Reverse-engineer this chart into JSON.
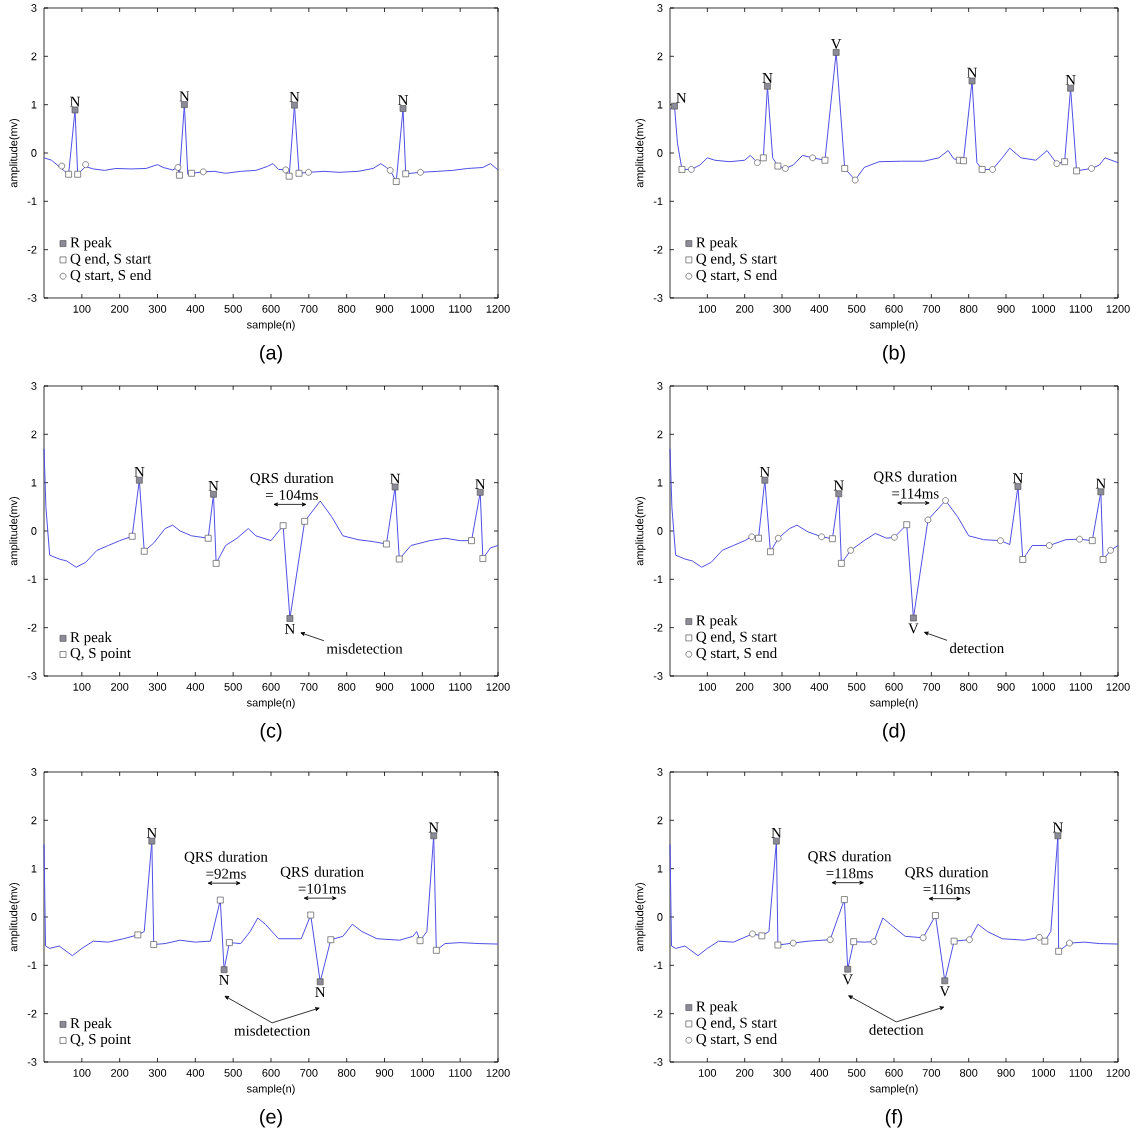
{
  "chart_data": [
    {
      "type": "line",
      "title": "(a)",
      "xlabel": "sample(n)",
      "ylabel": "amplitude(mv)",
      "xlim": [
        0,
        1200
      ],
      "xticks": [
        100,
        200,
        300,
        400,
        500,
        600,
        700,
        800,
        900,
        1000,
        1100,
        1200
      ],
      "ylim": [
        -3,
        3
      ],
      "yticks": [
        -3,
        -2,
        -1,
        0,
        1,
        2,
        3
      ],
      "legend": "bottom left",
      "series": [
        {
          "color": "#4f4fe6",
          "x": [
            0,
            20,
            40,
            55,
            65,
            82,
            89,
            110,
            130,
            160,
            190,
            230,
            270,
            300,
            315,
            340,
            354,
            358,
            371,
            380,
            390,
            421,
            450,
            480,
            520,
            560,
            590,
            605,
            620,
            639,
            648,
            662,
            674,
            699,
            740,
            780,
            830,
            870,
            890,
            905,
            915,
            931,
            949,
            956,
            995,
            1040,
            1080,
            1120,
            1160,
            1180,
            1200
          ],
          "values": [
            -0.1,
            -0.15,
            -0.28,
            -0.38,
            -0.44,
            0.89,
            -0.44,
            -0.28,
            -0.33,
            -0.36,
            -0.32,
            -0.33,
            -0.32,
            -0.24,
            -0.3,
            -0.35,
            -0.3,
            -0.46,
            1.0,
            -0.44,
            -0.42,
            -0.39,
            -0.38,
            -0.42,
            -0.38,
            -0.36,
            -0.28,
            -0.22,
            -0.34,
            -0.35,
            -0.48,
            0.99,
            -0.42,
            -0.4,
            -0.38,
            -0.4,
            -0.38,
            -0.32,
            -0.22,
            -0.3,
            -0.36,
            -0.59,
            0.92,
            -0.43,
            -0.4,
            -0.38,
            -0.36,
            -0.32,
            -0.3,
            -0.22,
            -0.35
          ]
        },
        {
          "type": "scatter",
          "name": "R peak",
          "marker": "square",
          "color": "#8c8c98",
          "x": [
            82,
            371,
            662,
            949
          ],
          "values": [
            0.89,
            1.0,
            0.99,
            0.92
          ],
          "value_labels": [
            "N",
            "N",
            "N",
            "N"
          ]
        },
        {
          "type": "scatter",
          "name": "Q end, S start",
          "marker": "square",
          "color": "#ffffff",
          "x": [
            65,
            89,
            358,
            390,
            648,
            674,
            931,
            956
          ],
          "values": [
            -0.44,
            -0.44,
            -0.46,
            -0.42,
            -0.48,
            -0.42,
            -0.59,
            -0.43
          ]
        },
        {
          "type": "scatter",
          "name": "Q start, S end",
          "marker": "circle",
          "color": "#ffffff",
          "x": [
            47,
            110,
            354,
            421,
            639,
            699,
            915,
            995
          ],
          "values": [
            -0.27,
            -0.24,
            -0.3,
            -0.39,
            -0.35,
            -0.4,
            -0.36,
            -0.4
          ]
        }
      ]
    },
    {
      "type": "line",
      "title": "(b)",
      "xlabel": "sample(n)",
      "ylabel": "amplitude(mv)",
      "xlim": [
        0,
        1200
      ],
      "xticks": [
        100,
        200,
        300,
        400,
        500,
        600,
        700,
        800,
        900,
        1000,
        1100,
        1200
      ],
      "ylim": [
        -3,
        3
      ],
      "yticks": [
        -3,
        -2,
        -1,
        0,
        1,
        2,
        3
      ],
      "legend": "bottom left",
      "series": [
        {
          "color": "#4f4fe6",
          "x": [
            0,
            12,
            20,
            32,
            57,
            80,
            100,
            120,
            160,
            200,
            215,
            234,
            250,
            261,
            275,
            289,
            309,
            330,
            355,
            382,
            415,
            445,
            468,
            496,
            520,
            560,
            620,
            680,
            720,
            745,
            760,
            775,
            786,
            809,
            822,
            836,
            864,
            890,
            910,
            940,
            980,
            1010,
            1036,
            1057,
            1073,
            1089,
            1129,
            1150,
            1165,
            1200
          ],
          "values": [
            0.9,
            0.97,
            0.2,
            -0.34,
            -0.34,
            -0.25,
            -0.1,
            -0.15,
            -0.18,
            -0.15,
            -0.05,
            -0.2,
            -0.1,
            1.38,
            -0.1,
            -0.27,
            -0.32,
            -0.25,
            -0.05,
            -0.1,
            -0.15,
            2.08,
            -0.32,
            -0.56,
            -0.3,
            -0.18,
            -0.17,
            -0.17,
            -0.1,
            0.05,
            -0.12,
            -0.15,
            -0.16,
            1.49,
            -0.2,
            -0.34,
            -0.34,
            -0.1,
            0.1,
            -0.1,
            -0.15,
            0.05,
            -0.22,
            -0.18,
            1.34,
            -0.37,
            -0.32,
            -0.25,
            -0.1,
            -0.2
          ]
        },
        {
          "type": "scatter",
          "name": "R peak",
          "marker": "square",
          "color": "#8c8c98",
          "x": [
            12,
            261,
            445,
            809,
            1073
          ],
          "values": [
            0.97,
            1.38,
            2.08,
            1.49,
            1.34
          ],
          "value_labels": [
            "N",
            "N",
            "V",
            "N",
            "N"
          ]
        },
        {
          "type": "scatter",
          "name": "Q end, S start",
          "marker": "square",
          "color": "#ffffff",
          "x": [
            32,
            250,
            289,
            415,
            468,
            775,
            786,
            836,
            1057,
            1089
          ],
          "values": [
            -0.34,
            -0.1,
            -0.27,
            -0.15,
            -0.32,
            -0.15,
            -0.16,
            -0.34,
            -0.18,
            -0.37
          ]
        },
        {
          "type": "scatter",
          "name": "Q start, S end",
          "marker": "circle",
          "color": "#ffffff",
          "x": [
            57,
            234,
            309,
            382,
            496,
            864,
            1036,
            1129
          ],
          "values": [
            -0.34,
            -0.2,
            -0.32,
            -0.1,
            -0.56,
            -0.34,
            -0.22,
            -0.32
          ]
        }
      ]
    },
    {
      "type": "line",
      "title": "(c)",
      "xlabel": "sample(n)",
      "ylabel": "amplitude(mv)",
      "xlim": [
        0,
        1200
      ],
      "xticks": [
        100,
        200,
        300,
        400,
        500,
        600,
        700,
        800,
        900,
        1000,
        1100,
        1200
      ],
      "ylim": [
        -3,
        3
      ],
      "yticks": [
        -3,
        -2,
        -1,
        0,
        1,
        2,
        3
      ],
      "legend": "bottom left",
      "series": [
        {
          "color": "#4f4fe6",
          "x": [
            0,
            5,
            15,
            40,
            60,
            85,
            110,
            140,
            170,
            200,
            233,
            252,
            265,
            290,
            320,
            340,
            360,
            390,
            434,
            448,
            455,
            480,
            510,
            540,
            560,
            600,
            632,
            650,
            689,
            730,
            760,
            790,
            830,
            870,
            905,
            928,
            939,
            970,
            1020,
            1060,
            1100,
            1130,
            1153,
            1160,
            1180,
            1200
          ],
          "values": [
            1.7,
            0.5,
            -0.5,
            -0.58,
            -0.62,
            -0.75,
            -0.65,
            -0.4,
            -0.3,
            -0.2,
            -0.11,
            1.05,
            -0.42,
            -0.25,
            0.05,
            0.12,
            0.0,
            -0.1,
            -0.15,
            0.76,
            -0.67,
            -0.3,
            -0.15,
            0.05,
            -0.1,
            -0.2,
            0.11,
            -1.81,
            0.2,
            0.62,
            0.3,
            -0.1,
            -0.18,
            -0.22,
            -0.27,
            0.91,
            -0.58,
            -0.3,
            -0.2,
            -0.15,
            -0.2,
            -0.2,
            0.8,
            -0.57,
            -0.35,
            -0.3
          ]
        },
        {
          "type": "scatter",
          "name": "R peak",
          "marker": "square",
          "color": "#8c8c98",
          "x": [
            252,
            448,
            650,
            928,
            1153
          ],
          "values": [
            1.05,
            0.76,
            -1.81,
            0.91,
            0.8
          ],
          "value_labels": [
            "N",
            "N",
            "N",
            "N",
            "N"
          ]
        },
        {
          "type": "scatter",
          "name": "Q, S point",
          "marker": "square",
          "color": "#ffffff",
          "x": [
            233,
            265,
            434,
            455,
            632,
            689,
            905,
            939,
            1130,
            1160
          ],
          "values": [
            -0.11,
            -0.42,
            -0.15,
            -0.67,
            0.11,
            0.2,
            -0.27,
            -0.58,
            -0.2,
            -0.57
          ]
        }
      ],
      "annotations": [
        "QRS duration = 104ms",
        "misdetection"
      ]
    },
    {
      "type": "line",
      "title": "(d)",
      "xlabel": "sample(n)",
      "ylabel": "amplitude(mv)",
      "xlim": [
        0,
        1200
      ],
      "xticks": [
        100,
        200,
        300,
        400,
        500,
        600,
        700,
        800,
        900,
        1000,
        1100,
        1200
      ],
      "ylim": [
        -3,
        3
      ],
      "yticks": [
        -3,
        -2,
        -1,
        0,
        1,
        2,
        3
      ],
      "legend": "bottom left",
      "series": [
        {
          "color": "#4f4fe6",
          "x": [
            0,
            5,
            15,
            40,
            60,
            85,
            110,
            140,
            170,
            200,
            219,
            237,
            254,
            269,
            290,
            320,
            340,
            370,
            406,
            435,
            452,
            459,
            484,
            520,
            550,
            580,
            601,
            634,
            652,
            691,
            738,
            770,
            800,
            840,
            885,
            910,
            932,
            945,
            970,
            1016,
            1060,
            1097,
            1131,
            1154,
            1160,
            1180,
            1200
          ],
          "values": [
            1.7,
            0.5,
            -0.5,
            -0.58,
            -0.62,
            -0.75,
            -0.65,
            -0.4,
            -0.3,
            -0.2,
            -0.12,
            -0.15,
            1.05,
            -0.43,
            -0.15,
            0.05,
            0.12,
            -0.02,
            -0.12,
            -0.16,
            0.77,
            -0.67,
            -0.4,
            -0.2,
            -0.05,
            -0.15,
            -0.13,
            0.13,
            -1.8,
            0.23,
            0.63,
            0.3,
            -0.1,
            -0.18,
            -0.2,
            -0.28,
            0.92,
            -0.59,
            -0.3,
            -0.3,
            -0.18,
            -0.17,
            -0.2,
            0.81,
            -0.59,
            -0.4,
            -0.3
          ]
        },
        {
          "type": "scatter",
          "name": "R peak",
          "marker": "square",
          "color": "#8c8c98",
          "x": [
            254,
            452,
            652,
            932,
            1154
          ],
          "values": [
            1.05,
            0.77,
            -1.8,
            0.92,
            0.81
          ],
          "value_labels": [
            "N",
            "N",
            "V",
            "N",
            "N"
          ]
        },
        {
          "type": "scatter",
          "name": "Q end, S start",
          "marker": "square",
          "color": "#ffffff",
          "x": [
            237,
            269,
            435,
            459,
            634,
            945,
            1131,
            1160
          ],
          "values": [
            -0.15,
            -0.43,
            -0.16,
            -0.67,
            0.13,
            -0.59,
            -0.2,
            -0.59
          ]
        },
        {
          "type": "scatter",
          "name": "Q start, S end",
          "marker": "circle",
          "color": "#ffffff",
          "x": [
            219,
            290,
            406,
            484,
            601,
            691,
            738,
            885,
            1016,
            1097,
            1180
          ],
          "values": [
            -0.12,
            -0.15,
            -0.12,
            -0.4,
            -0.13,
            0.23,
            0.63,
            -0.2,
            -0.3,
            -0.17,
            -0.4
          ]
        }
      ],
      "annotations": [
        "QRS duration =114ms",
        "detection"
      ]
    },
    {
      "type": "line",
      "title": "(e)",
      "xlabel": "sample(n)",
      "ylabel": "amplitude(mv)",
      "xlim": [
        0,
        1200
      ],
      "xticks": [
        100,
        200,
        300,
        400,
        500,
        600,
        700,
        800,
        900,
        1000,
        1100,
        1200
      ],
      "ylim": [
        -3,
        3
      ],
      "yticks": [
        -3,
        -2,
        -1,
        0,
        1,
        2,
        3
      ],
      "legend": "bottom left",
      "series": [
        {
          "color": "#4f4fe6",
          "x": [
            0,
            4,
            15,
            40,
            75,
            100,
            130,
            170,
            210,
            248,
            265,
            285,
            290,
            320,
            360,
            400,
            440,
            466,
            476,
            490,
            520,
            545,
            565,
            585,
            620,
            680,
            705,
            730,
            758,
            790,
            815,
            840,
            880,
            940,
            975,
            985,
            994,
            1012,
            1030,
            1037,
            1060,
            1100,
            1150,
            1200
          ],
          "values": [
            1.5,
            -0.6,
            -0.65,
            -0.6,
            -0.8,
            -0.65,
            -0.5,
            -0.52,
            -0.45,
            -0.37,
            -0.3,
            1.57,
            -0.57,
            -0.55,
            -0.48,
            -0.52,
            -0.5,
            0.35,
            -1.09,
            -0.53,
            -0.55,
            -0.3,
            -0.02,
            -0.15,
            -0.45,
            -0.45,
            0.04,
            -1.34,
            -0.47,
            -0.4,
            -0.15,
            -0.3,
            -0.45,
            -0.48,
            -0.4,
            -0.3,
            -0.49,
            -0.3,
            1.68,
            -0.69,
            -0.55,
            -0.53,
            -0.55,
            -0.56
          ]
        },
        {
          "type": "scatter",
          "name": "R peak",
          "marker": "square",
          "color": "#8c8c98",
          "x": [
            285,
            476,
            730,
            1030
          ],
          "values": [
            1.57,
            -1.09,
            -1.34,
            1.68
          ],
          "value_labels": [
            "N",
            "N",
            "N",
            "N"
          ]
        },
        {
          "type": "scatter",
          "name": "Q, S point",
          "marker": "square",
          "color": "#ffffff",
          "x": [
            248,
            290,
            466,
            490,
            705,
            758,
            994,
            1037
          ],
          "values": [
            -0.37,
            -0.57,
            0.35,
            -0.53,
            0.04,
            -0.47,
            -0.49,
            -0.69
          ]
        }
      ],
      "annotations": [
        "QRS duration =92ms",
        "QRS duration =101ms",
        "misdetection"
      ]
    },
    {
      "type": "line",
      "title": "(f)",
      "xlabel": "sample(n)",
      "ylabel": "amplitude(mv)",
      "xlim": [
        0,
        1200
      ],
      "xticks": [
        100,
        200,
        300,
        400,
        500,
        600,
        700,
        800,
        900,
        1000,
        1100,
        1200
      ],
      "ylim": [
        -3,
        3
      ],
      "yticks": [
        -3,
        -2,
        -1,
        0,
        1,
        2,
        3
      ],
      "legend": "bottom left",
      "series": [
        {
          "color": "#4f4fe6",
          "x": [
            0,
            4,
            15,
            40,
            75,
            100,
            130,
            170,
            221,
            246,
            265,
            285,
            289,
            330,
            370,
            429,
            467,
            476,
            492,
            520,
            546,
            570,
            590,
            630,
            678,
            711,
            736,
            761,
            802,
            825,
            850,
            890,
            950,
            989,
            1004,
            1020,
            1039,
            1041,
            1070,
            1110,
            1150,
            1200
          ],
          "values": [
            1.5,
            -0.6,
            -0.65,
            -0.6,
            -0.8,
            -0.65,
            -0.5,
            -0.52,
            -0.35,
            -0.39,
            -0.3,
            1.57,
            -0.58,
            -0.54,
            -0.5,
            -0.47,
            0.36,
            -1.08,
            -0.51,
            -0.52,
            -0.51,
            -0.02,
            -0.15,
            -0.4,
            -0.43,
            0.03,
            -1.32,
            -0.5,
            -0.47,
            -0.15,
            -0.3,
            -0.45,
            -0.48,
            -0.42,
            -0.5,
            -0.3,
            1.68,
            -0.71,
            -0.54,
            -0.52,
            -0.55,
            -0.56
          ]
        },
        {
          "type": "scatter",
          "name": "R peak",
          "marker": "square",
          "color": "#8c8c98",
          "x": [
            285,
            476,
            736,
            1039
          ],
          "values": [
            1.57,
            -1.08,
            -1.32,
            1.68
          ],
          "value_labels": [
            "N",
            "V",
            "V",
            "N"
          ]
        },
        {
          "type": "scatter",
          "name": "Q end, S start",
          "marker": "square",
          "color": "#ffffff",
          "x": [
            246,
            289,
            467,
            492,
            711,
            761,
            1004,
            1041
          ],
          "values": [
            -0.39,
            -0.58,
            0.36,
            -0.51,
            0.03,
            -0.5,
            -0.5,
            -0.71
          ]
        },
        {
          "type": "scatter",
          "name": "Q start, S end",
          "marker": "circle",
          "color": "#ffffff",
          "x": [
            221,
            330,
            429,
            546,
            678,
            802,
            989,
            1070
          ],
          "values": [
            -0.35,
            -0.54,
            -0.47,
            -0.51,
            -0.43,
            -0.47,
            -0.42,
            -0.54
          ]
        }
      ],
      "annotations": [
        "QRS duration =118ms",
        "QRS duration =116ms",
        "detection"
      ]
    }
  ]
}
